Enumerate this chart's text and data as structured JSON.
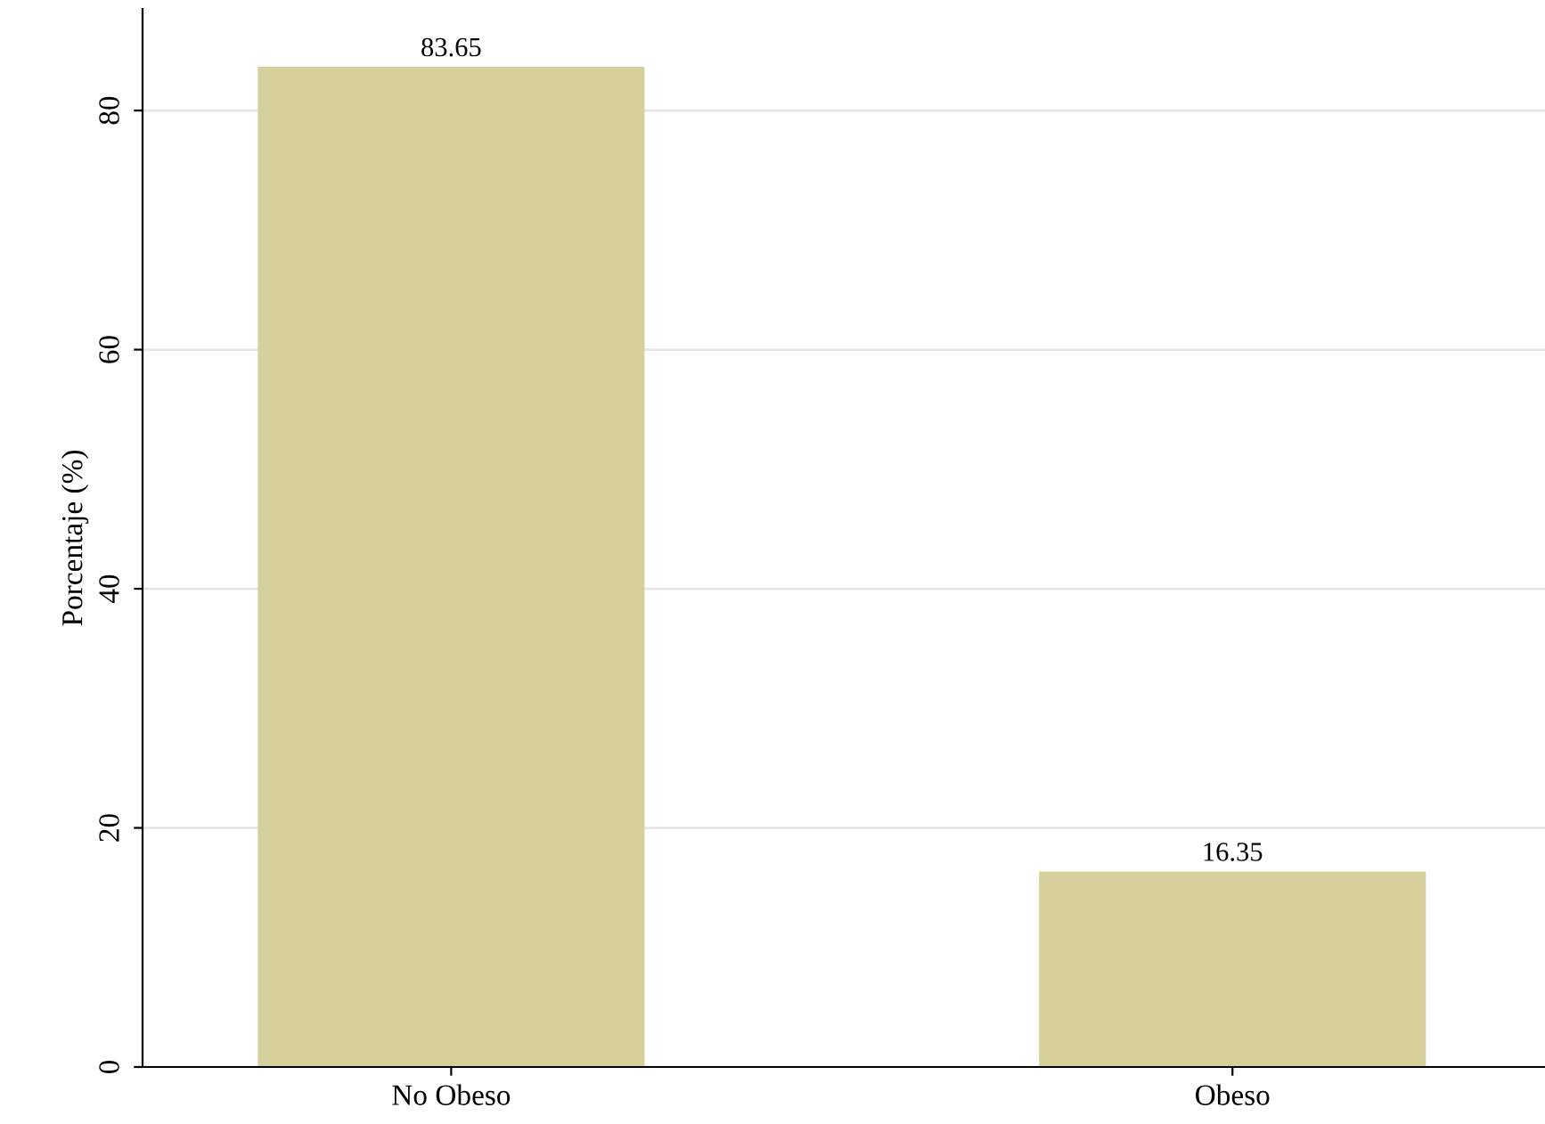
{
  "chart_data": {
    "type": "bar",
    "ylabel": "Porcentaje (%)",
    "categories": [
      "No Obeso",
      "Obeso"
    ],
    "values": [
      83.65,
      16.35
    ],
    "color": "#d5d09c",
    "ylim": [
      0,
      88.5
    ],
    "yticks": [
      0,
      20,
      40,
      60,
      80
    ],
    "grid": "y",
    "data_labels": true
  }
}
